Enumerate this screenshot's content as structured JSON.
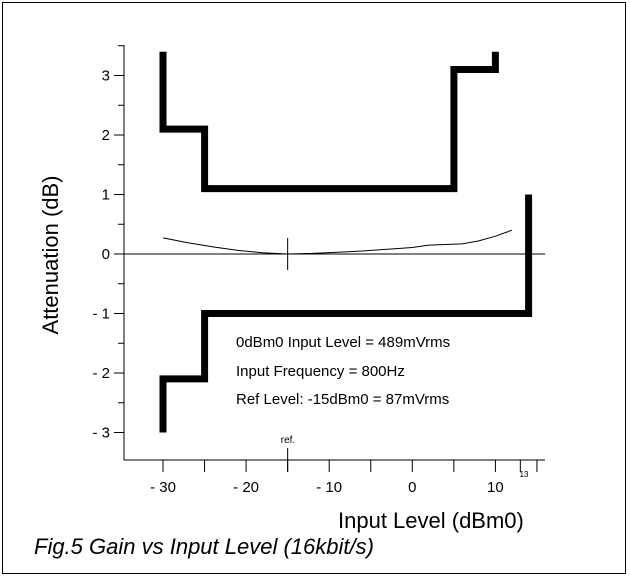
{
  "chart_data": {
    "type": "line",
    "title": "",
    "xlabel": "Input Level (dBm0)",
    "ylabel": "Attenuation (dB)",
    "xlim": [
      -33,
      18
    ],
    "ylim": [
      -3.4,
      3.7
    ],
    "x_ticks": [
      {
        "value": -30,
        "label": "- 30"
      },
      {
        "value": -20,
        "label": "- 20"
      },
      {
        "value": -10,
        "label": "- 10"
      },
      {
        "value": 0,
        "label": "0"
      },
      {
        "value": 10,
        "label": "10"
      }
    ],
    "x_minor_ticks": [
      -25,
      -15,
      -5,
      5,
      13,
      15
    ],
    "y_ticks": [
      {
        "value": 3,
        "label": "3"
      },
      {
        "value": 2,
        "label": "2"
      },
      {
        "value": 1,
        "label": "1"
      },
      {
        "value": 0,
        "label": "0"
      },
      {
        "value": -1,
        "label": "- 1"
      },
      {
        "value": -2,
        "label": "- 2"
      },
      {
        "value": -3,
        "label": "- 3"
      }
    ],
    "y_minor_ticks": [
      3.5,
      2.5,
      1.5,
      0.5,
      -0.5,
      -1.5,
      -2.5
    ],
    "series": [
      {
        "role": "mask-upper",
        "x": [
          -30,
          -30,
          -30,
          -25,
          -25,
          -25,
          5,
          5,
          5,
          10,
          10
        ],
        "y": [
          3.4,
          3.4,
          2.1,
          2.1,
          2.1,
          1.1,
          1.1,
          1.1,
          3.1,
          3.1,
          3.4
        ]
      },
      {
        "role": "mask-lower",
        "x": [
          -30,
          -30,
          -25,
          -25,
          14,
          14
        ],
        "y": [
          -3.0,
          -2.1,
          -2.1,
          -1.0,
          -1.0,
          1.0
        ]
      },
      {
        "role": "measured",
        "x": [
          -30,
          -27,
          -24,
          -21,
          -18,
          -15,
          -12,
          -9,
          -6,
          -3,
          0,
          2,
          4,
          6,
          8,
          10,
          12
        ],
        "y": [
          0.27,
          0.19,
          0.12,
          0.06,
          0.02,
          0.0,
          0.01,
          0.03,
          0.05,
          0.08,
          0.11,
          0.15,
          0.16,
          0.17,
          0.22,
          0.3,
          0.4
        ]
      }
    ],
    "reference": {
      "x": -15,
      "label": "ref."
    },
    "small_label": "13",
    "annotations": [
      "0dBm0 Input Level = 489mVrms",
      "Input Frequency = 800Hz",
      "Ref Level: -15dBm0 = 87mVrms"
    ]
  },
  "caption": "Fig.5 Gain vs Input Level (16kbit/s)"
}
